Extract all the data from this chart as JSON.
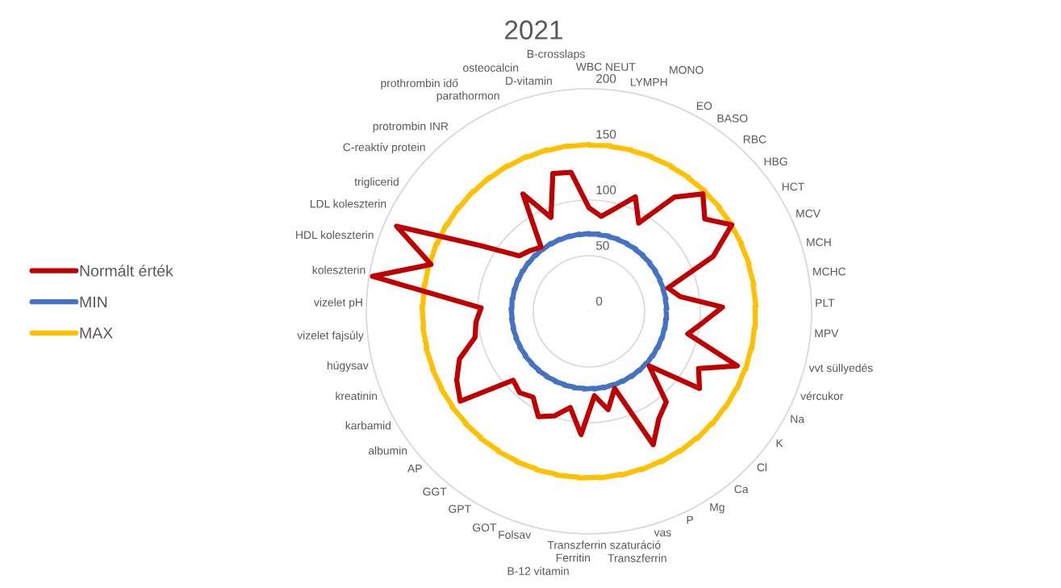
{
  "chart_data": {
    "type": "radar",
    "title": "2021",
    "categories": [
      "WBC",
      "NEUT",
      "LYMPH",
      "MONO",
      "EO",
      "BASO",
      "RBC",
      "HBG",
      "HCT",
      "MCV",
      "MCH",
      "MCHC",
      "PLT",
      "MPV",
      "vvt süllyedés",
      "vércukor",
      "Na",
      "K",
      "Cl",
      "Ca",
      "Mg",
      "P",
      "vas",
      "Transzferrin",
      "Transzferrin szaturáció",
      "Ferritin",
      "B-12 vitamin",
      "Folsav",
      "GOT",
      "GPT",
      "GGT",
      "AP",
      "albumin",
      "karbamid",
      "kreatinin",
      "húgysav",
      "vizelet fajsúly",
      "vizelet pH",
      "koleszterin",
      "HDL koleszterin",
      "LDL koleszterin",
      "triglicerid",
      "C-reaktív protein",
      "protrombin INR",
      "prothrombin idő",
      "parathormon",
      "osteocalcin",
      "D-vitamin",
      "B-crosslaps"
    ],
    "series": [
      {
        "name": "Normált érték",
        "color": "#c00000",
        "values": [
          93,
          86,
          96,
          111,
          91,
          128,
          147,
          133,
          150,
          122,
          74,
          83,
          120,
          103,
          91,
          142,
          111,
          121,
          73,
          107,
          115,
          133,
          73,
          90,
          76,
          111,
          88,
          99,
          105,
          92,
          96,
          92,
          141,
          134,
          124,
          105,
          102,
          97,
          197,
          148,
          189,
          114,
          80,
          76,
          72,
          121,
          91,
          128,
          126
        ]
      },
      {
        "name": "MIN",
        "color": "#4472c4",
        "values": [
          70,
          70,
          70,
          70,
          70,
          70,
          70,
          70,
          70,
          70,
          70,
          70,
          70,
          70,
          70,
          70,
          70,
          70,
          70,
          70,
          70,
          70,
          70,
          70,
          70,
          70,
          70,
          70,
          70,
          70,
          70,
          70,
          70,
          70,
          70,
          70,
          70,
          70,
          70,
          70,
          70,
          70,
          70,
          70,
          70,
          70,
          70,
          70,
          70
        ]
      },
      {
        "name": "MAX",
        "color": "#ffc000",
        "values": [
          150,
          150,
          150,
          150,
          150,
          150,
          150,
          150,
          150,
          150,
          150,
          150,
          150,
          150,
          150,
          150,
          150,
          150,
          150,
          150,
          150,
          150,
          150,
          150,
          150,
          150,
          150,
          150,
          150,
          150,
          150,
          150,
          150,
          150,
          150,
          150,
          150,
          150,
          150,
          150,
          150,
          150,
          150,
          150,
          150,
          150,
          150,
          150,
          150
        ]
      }
    ],
    "ylim": [
      0,
      200
    ],
    "yticks": [
      0,
      50,
      100,
      150,
      200
    ],
    "grid": "y",
    "legend": "left"
  }
}
